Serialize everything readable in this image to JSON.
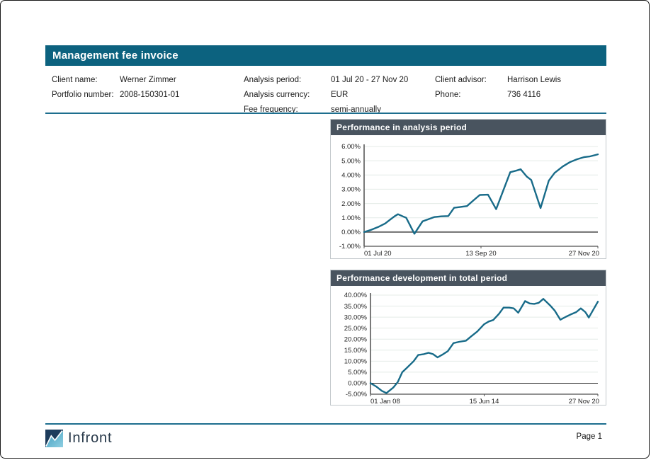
{
  "header": {
    "title": "Management fee invoice"
  },
  "info": {
    "col1": [
      {
        "label": "Client name:",
        "value": "Werner Zimmer"
      },
      {
        "label": "Portfolio number:",
        "value": "2008-150301-01"
      }
    ],
    "col2": [
      {
        "label": "Analysis period:",
        "value": "01 Jul 20 - 27 Nov 20"
      },
      {
        "label": "Analysis currency:",
        "value": "EUR"
      },
      {
        "label": "Fee frequency:",
        "value": "semi-annually"
      }
    ],
    "col3": [
      {
        "label": "Client advisor:",
        "value": "Harrison Lewis"
      },
      {
        "label": "Phone:",
        "value": "736 4116"
      }
    ]
  },
  "footer": {
    "brand": "Infront",
    "page_label": "Page 1"
  },
  "colors": {
    "header_bg": "#0c627f",
    "accent_rule": "#1d6e8e",
    "panel_title_bg": "#49545f",
    "chart_line": "#186b89",
    "grid_line": "#e4ebe7",
    "axis_line": "#4f4f4f",
    "zero_line_chart1": "#6f6f6f",
    "zero_line_chart2": "#222222",
    "logo_navy": "#1d3c5c",
    "logo_teal_light": "#3e9cbe",
    "logo_teal_lighter": "#8fcfe2",
    "brand_text": "#263748"
  },
  "chart_data": [
    {
      "type": "line",
      "title": "Performance in analysis period",
      "ylim": [
        -1,
        6
      ],
      "yticks": [
        {
          "value": 6,
          "label": "6.00%"
        },
        {
          "value": 5,
          "label": "5.00%"
        },
        {
          "value": 4,
          "label": "4.00%"
        },
        {
          "value": 3,
          "label": "3.00%"
        },
        {
          "value": 2,
          "label": "2.00%"
        },
        {
          "value": 1,
          "label": "1.00%"
        },
        {
          "value": 0,
          "label": "0.00%"
        },
        {
          "value": -1,
          "label": "-1.00%"
        }
      ],
      "xticks": [
        {
          "pos": 0,
          "label": "01 Jul 20",
          "anchor": "start"
        },
        {
          "pos": 0.5,
          "label": "13 Sep 20",
          "anchor": "middle"
        },
        {
          "pos": 1,
          "label": "27 Nov 20",
          "anchor": "end"
        }
      ],
      "x_is_fraction": true,
      "points": [
        [
          0,
          0
        ],
        [
          0.03,
          0.15
        ],
        [
          0.06,
          0.35
        ],
        [
          0.09,
          0.6
        ],
        [
          0.11,
          0.85
        ],
        [
          0.13,
          1.1
        ],
        [
          0.145,
          1.25
        ],
        [
          0.165,
          1.1
        ],
        [
          0.18,
          1.0
        ],
        [
          0.215,
          -0.12
        ],
        [
          0.25,
          0.75
        ],
        [
          0.275,
          0.9
        ],
        [
          0.3,
          1.05
        ],
        [
          0.33,
          1.1
        ],
        [
          0.36,
          1.12
        ],
        [
          0.385,
          1.7
        ],
        [
          0.41,
          1.75
        ],
        [
          0.44,
          1.82
        ],
        [
          0.47,
          2.25
        ],
        [
          0.495,
          2.6
        ],
        [
          0.53,
          2.62
        ],
        [
          0.565,
          1.6
        ],
        [
          0.625,
          4.2
        ],
        [
          0.65,
          4.3
        ],
        [
          0.67,
          4.4
        ],
        [
          0.695,
          3.9
        ],
        [
          0.715,
          3.65
        ],
        [
          0.755,
          1.68
        ],
        [
          0.79,
          3.6
        ],
        [
          0.815,
          4.15
        ],
        [
          0.85,
          4.6
        ],
        [
          0.88,
          4.9
        ],
        [
          0.91,
          5.1
        ],
        [
          0.94,
          5.25
        ],
        [
          0.965,
          5.3
        ],
        [
          1,
          5.45
        ]
      ],
      "line_color": "#186b89",
      "zero_line_color": "#6f6f6f",
      "zero_line_width": 2
    },
    {
      "type": "line",
      "title": "Performance development in total period",
      "ylim": [
        -5,
        40
      ],
      "yticks": [
        {
          "value": 40,
          "label": "40.00%"
        },
        {
          "value": 35,
          "label": "35.00%"
        },
        {
          "value": 30,
          "label": "30.00%"
        },
        {
          "value": 25,
          "label": "25.00%"
        },
        {
          "value": 20,
          "label": "20.00%"
        },
        {
          "value": 15,
          "label": "15.00%"
        },
        {
          "value": 10,
          "label": "10.00%"
        },
        {
          "value": 5,
          "label": "5.00%"
        },
        {
          "value": 0,
          "label": "0.00%"
        },
        {
          "value": -5,
          "label": "-5.00%"
        }
      ],
      "xticks": [
        {
          "pos": 0,
          "label": "01 Jan 08",
          "anchor": "start"
        },
        {
          "pos": 0.5,
          "label": "15 Jun 14",
          "anchor": "middle"
        },
        {
          "pos": 1,
          "label": "27 Nov 20",
          "anchor": "end"
        }
      ],
      "x_is_fraction": true,
      "points": [
        [
          0,
          0
        ],
        [
          0.025,
          -1.5
        ],
        [
          0.05,
          -3.5
        ],
        [
          0.07,
          -4.5
        ],
        [
          0.1,
          -2
        ],
        [
          0.12,
          0.5
        ],
        [
          0.14,
          5
        ],
        [
          0.16,
          7
        ],
        [
          0.19,
          10
        ],
        [
          0.21,
          12.8
        ],
        [
          0.235,
          13.2
        ],
        [
          0.255,
          13.8
        ],
        [
          0.275,
          13.2
        ],
        [
          0.295,
          11.7
        ],
        [
          0.32,
          13.2
        ],
        [
          0.34,
          14.5
        ],
        [
          0.365,
          18.2
        ],
        [
          0.39,
          18.8
        ],
        [
          0.42,
          19.3
        ],
        [
          0.44,
          21
        ],
        [
          0.47,
          23.5
        ],
        [
          0.5,
          26.8
        ],
        [
          0.52,
          28
        ],
        [
          0.54,
          28.7
        ],
        [
          0.565,
          31.5
        ],
        [
          0.585,
          34.3
        ],
        [
          0.61,
          34.3
        ],
        [
          0.63,
          34
        ],
        [
          0.65,
          32
        ],
        [
          0.68,
          37.3
        ],
        [
          0.7,
          36.2
        ],
        [
          0.72,
          36
        ],
        [
          0.74,
          36.5
        ],
        [
          0.76,
          38.3
        ],
        [
          0.79,
          35.3
        ],
        [
          0.81,
          33
        ],
        [
          0.835,
          28.8
        ],
        [
          0.86,
          30.2
        ],
        [
          0.88,
          31.2
        ],
        [
          0.905,
          32.3
        ],
        [
          0.925,
          34
        ],
        [
          0.945,
          32.3
        ],
        [
          0.96,
          29.8
        ],
        [
          1,
          37
        ]
      ],
      "line_color": "#186b89",
      "zero_line_color": "#222222",
      "zero_line_width": 1
    }
  ]
}
